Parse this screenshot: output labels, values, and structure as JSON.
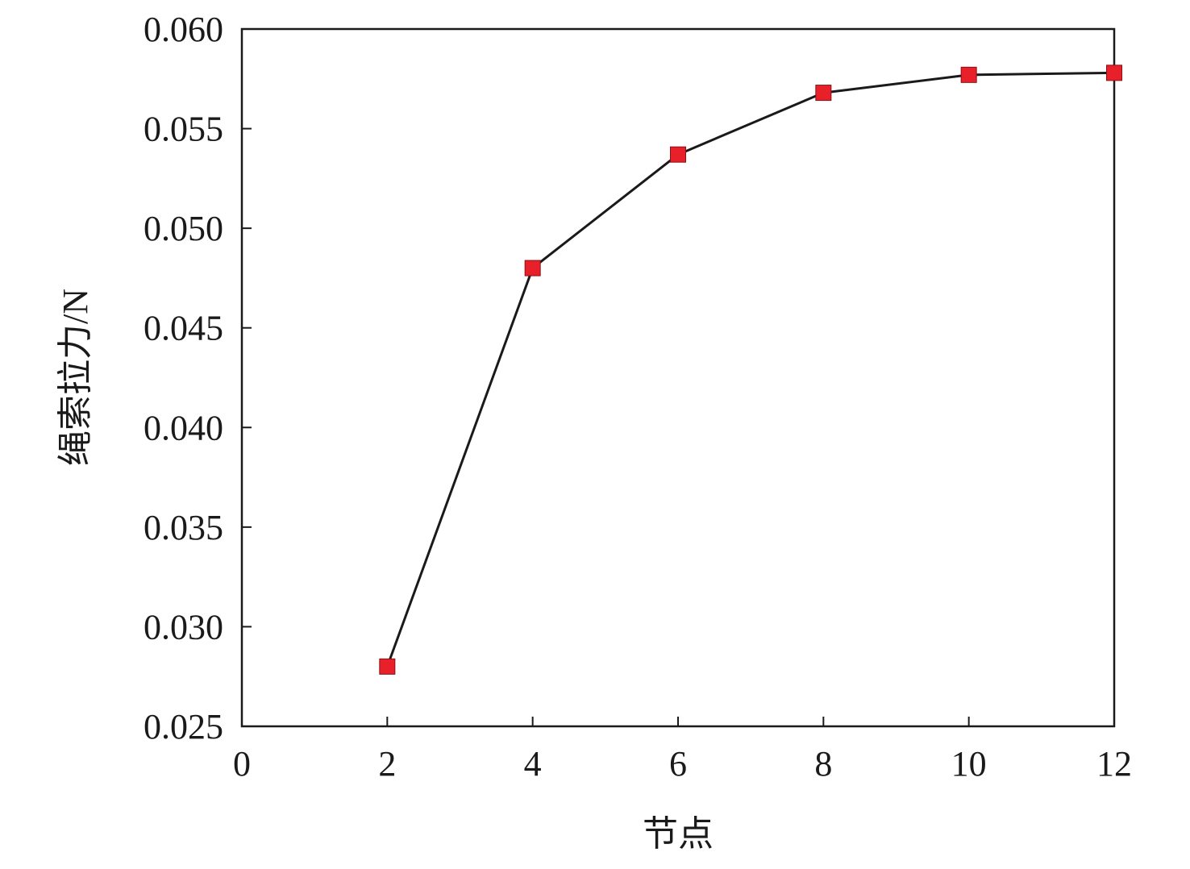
{
  "chart_data": {
    "type": "line",
    "title": "",
    "xlabel": "节点",
    "ylabel": "绳索拉力/N",
    "xlim": [
      0,
      12
    ],
    "ylim": [
      0.025,
      0.06
    ],
    "x_ticks": [
      0,
      2,
      4,
      6,
      8,
      10,
      12
    ],
    "x_tick_labels": [
      "0",
      "2",
      "4",
      "6",
      "8",
      "10",
      "12"
    ],
    "y_ticks": [
      0.025,
      0.03,
      0.035,
      0.04,
      0.045,
      0.05,
      0.055,
      0.06
    ],
    "y_tick_labels": [
      "0.025",
      "0.030",
      "0.035",
      "0.040",
      "0.045",
      "0.050",
      "0.055",
      "0.060"
    ],
    "grid": false,
    "series": [
      {
        "x": [
          2,
          4,
          6,
          8,
          10,
          12
        ],
        "y": [
          0.028,
          0.048,
          0.0537,
          0.0568,
          0.0577,
          0.0578
        ],
        "line_color": "#1a1a1a",
        "marker": "square",
        "marker_color": "#e8202a"
      }
    ]
  }
}
